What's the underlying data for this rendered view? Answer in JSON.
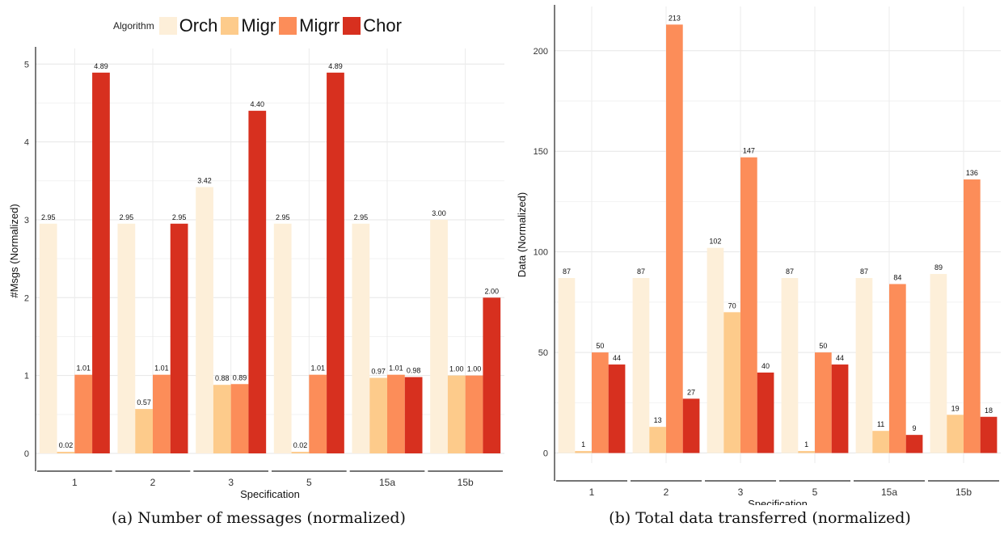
{
  "legend": {
    "title": "Algorithm",
    "entries": [
      "Orch",
      "Migr",
      "Migrr",
      "Chor"
    ]
  },
  "colors": {
    "Orch": "#fdefd9",
    "Migr": "#fdcb8b",
    "Migrr": "#fc8d59",
    "Chor": "#d7301f"
  },
  "captions": {
    "a": "(a) Number of messages (normalized)",
    "b": "(b) Total data transferred (normalized)"
  },
  "chart_data": [
    {
      "type": "bar",
      "xlabel": "Specification",
      "ylabel": "#Msgs (Normalized)",
      "categories": [
        "1",
        "2",
        "3",
        "5",
        "15a",
        "15b"
      ],
      "ylim": [
        0,
        5.2
      ],
      "yticks": [
        0,
        1,
        2,
        3,
        4,
        5
      ],
      "series": [
        {
          "name": "Orch",
          "values": [
            2.95,
            2.95,
            3.42,
            2.95,
            2.95,
            3.0
          ],
          "labels": [
            "2.95",
            "2.95",
            "3.42",
            "2.95",
            "2.95",
            "3.00"
          ]
        },
        {
          "name": "Migr",
          "values": [
            0.02,
            0.57,
            0.88,
            0.02,
            0.97,
            1.0
          ],
          "labels": [
            "0.02",
            "0.57",
            "0.88",
            "0.02",
            "0.97",
            "1.00"
          ]
        },
        {
          "name": "Migrr",
          "values": [
            1.01,
            1.01,
            0.89,
            1.01,
            1.01,
            1.0
          ],
          "labels": [
            "1.01",
            "1.01",
            "0.89",
            "1.01",
            "1.01",
            "1.00"
          ]
        },
        {
          "name": "Chor",
          "values": [
            4.89,
            2.95,
            4.4,
            4.89,
            0.98,
            2.0
          ],
          "labels": [
            "4.89",
            "2.95",
            "4.40",
            "4.89",
            "0.98",
            "2.00"
          ]
        }
      ],
      "grid": true
    },
    {
      "type": "bar",
      "xlabel": "Specification",
      "ylabel": "Data (Normalized)",
      "categories": [
        "1",
        "2",
        "3",
        "5",
        "15a",
        "15b"
      ],
      "ylim": [
        -5,
        222
      ],
      "yticks": [
        0,
        50,
        100,
        150,
        200
      ],
      "series": [
        {
          "name": "Orch",
          "values": [
            87,
            87,
            102,
            87,
            87,
            89
          ],
          "labels": [
            "87",
            "87",
            "102",
            "87",
            "87",
            "89"
          ]
        },
        {
          "name": "Migr",
          "values": [
            1,
            13,
            70,
            1,
            11,
            19
          ],
          "labels": [
            "1",
            "13",
            "70",
            "1",
            "11",
            "19"
          ]
        },
        {
          "name": "Migrr",
          "values": [
            50,
            213,
            147,
            50,
            84,
            136
          ],
          "labels": [
            "50",
            "213",
            "147",
            "50",
            "84",
            "136"
          ]
        },
        {
          "name": "Chor",
          "values": [
            44,
            27,
            40,
            44,
            9,
            18
          ],
          "labels": [
            "44",
            "27",
            "40",
            "44",
            "9",
            "18"
          ]
        }
      ],
      "grid": true
    }
  ]
}
